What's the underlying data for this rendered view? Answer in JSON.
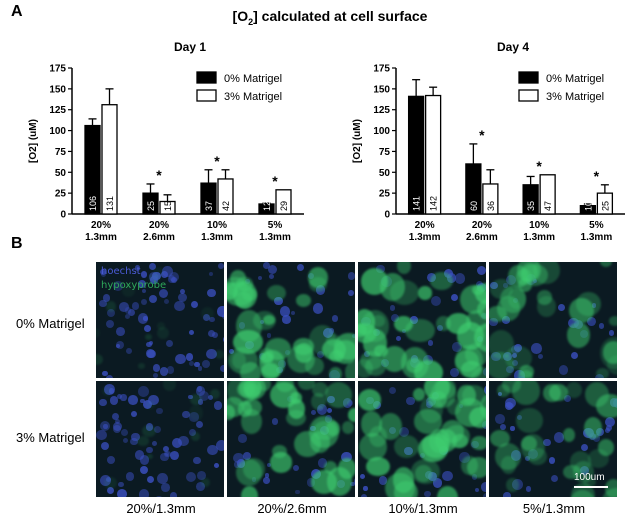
{
  "figure": {
    "title_main": "[O",
    "title_sub": "2",
    "title_rest": "] calculated at cell surface",
    "panel_a": "A",
    "panel_b": "B"
  },
  "chart_data": [
    {
      "type": "bar",
      "title": "Day 1",
      "ylabel": "[O2] (uM)",
      "xlabel": "",
      "ylim": [
        0,
        175
      ],
      "yticks": [
        0,
        25,
        50,
        75,
        100,
        125,
        150,
        175
      ],
      "categories": [
        [
          "20%",
          "1.3mm"
        ],
        [
          "20%",
          "2.6mm"
        ],
        [
          "10%",
          "1.3mm"
        ],
        [
          "5%",
          "1.3mm"
        ]
      ],
      "series": [
        {
          "name": "0% Matrigel",
          "color": "#000000",
          "values": [
            106,
            25,
            37,
            12
          ],
          "errors": [
            8,
            11,
            16,
            1
          ],
          "labels": [
            "106",
            "25",
            "37",
            "12"
          ]
        },
        {
          "name": "3% Matrigel",
          "color": "#ffffff",
          "values": [
            131,
            15,
            42,
            29
          ],
          "errors": [
            19,
            8,
            11,
            0
          ],
          "labels": [
            "131",
            "15",
            "42",
            "29"
          ]
        }
      ],
      "significance": [
        "",
        "*",
        "*",
        "*"
      ],
      "legend": "top-right",
      "grid": false
    },
    {
      "type": "bar",
      "title": "Day 4",
      "ylabel": "[O2] (uM)",
      "xlabel": "",
      "ylim": [
        0,
        175
      ],
      "yticks": [
        0,
        25,
        50,
        75,
        100,
        125,
        150,
        175
      ],
      "categories": [
        [
          "20%",
          "1.3mm"
        ],
        [
          "20%",
          "2.6mm"
        ],
        [
          "10%",
          "1.3mm"
        ],
        [
          "5%",
          "1.3mm"
        ]
      ],
      "series": [
        {
          "name": "0% Matrigel",
          "color": "#000000",
          "values": [
            141,
            60,
            35,
            10
          ],
          "errors": [
            20,
            24,
            10,
            2
          ],
          "labels": [
            "141",
            "60",
            "35",
            "10"
          ]
        },
        {
          "name": "3% Matrigel",
          "color": "#ffffff",
          "values": [
            142,
            36,
            47,
            25
          ],
          "errors": [
            10,
            17,
            0,
            10
          ],
          "labels": [
            "142",
            "36",
            "47",
            "25"
          ]
        }
      ],
      "significance": [
        "",
        "*",
        "*",
        "*"
      ],
      "legend": "top-right",
      "grid": false
    }
  ],
  "micrographs": {
    "stain_labels": [
      {
        "text": "hoechst",
        "color": "#4b5bd6"
      },
      {
        "text": "hypoxyprobe",
        "color": "#2fa85a"
      }
    ],
    "row_labels": [
      "0% Matrigel",
      "3% Matrigel"
    ],
    "col_labels": [
      "20%/1.3mm",
      "20%/2.6mm",
      "10%/1.3mm",
      "5%/1.3mm"
    ],
    "scale_bar": "100um",
    "colors": {
      "hoechst": "#3a4fbf",
      "hypoxyprobe": "#3fcf70",
      "background": "#0b1a22"
    }
  }
}
